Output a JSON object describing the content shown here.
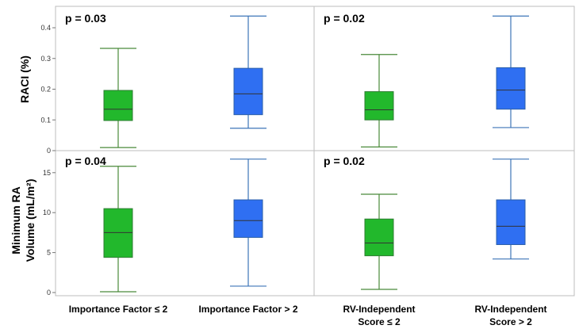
{
  "colors": {
    "green_fill": "#22b82c",
    "green_stroke": "#2e7d32",
    "blue_fill": "#2f6ff2",
    "blue_stroke": "#2b5fa8",
    "whisker_green": "#4a8a3a",
    "whisker_blue": "#3d74b8",
    "panel_border": "#bdbdbd"
  },
  "labels": {
    "x_cats": [
      [
        "Importance Factor ≤ 2"
      ],
      [
        "Importance Factor > 2"
      ],
      [
        "RV-Independent",
        "Score ≤ 2"
      ],
      [
        "RV-Independent",
        "Score > 2"
      ]
    ],
    "y_top": [
      "RACI (%)"
    ],
    "y_bottom": [
      "Minimum RA",
      "Volume (mL/m²)"
    ]
  },
  "chart_data": [
    {
      "type": "box",
      "panel": "top-left",
      "annotation": "p = 0.03",
      "ylabel": "RACI (%)",
      "ylim": [
        0,
        0.45
      ],
      "yticks": [
        0,
        0.1,
        0.2,
        0.3,
        0.4
      ],
      "ytick_labels": [
        "0",
        "0.1",
        "0.2",
        "0.3",
        "0.4"
      ],
      "categories": [
        "Importance Factor ≤ 2",
        "Importance Factor > 2"
      ],
      "boxes": [
        {
          "min": 0.01,
          "q1": 0.098,
          "median": 0.135,
          "q3": 0.196,
          "max": 0.333,
          "color": "green"
        },
        {
          "min": 0.073,
          "q1": 0.117,
          "median": 0.185,
          "q3": 0.268,
          "max": 0.438,
          "color": "blue"
        }
      ]
    },
    {
      "type": "box",
      "panel": "top-right",
      "annotation": "p = 0.02",
      "ylabel": "RACI (%)",
      "ylim": [
        0,
        0.45
      ],
      "categories": [
        "RV-Independent Score ≤ 2",
        "RV-Independent Score > 2"
      ],
      "boxes": [
        {
          "min": 0.012,
          "q1": 0.1,
          "median": 0.133,
          "q3": 0.192,
          "max": 0.313,
          "color": "green"
        },
        {
          "min": 0.075,
          "q1": 0.135,
          "median": 0.197,
          "q3": 0.27,
          "max": 0.438,
          "color": "blue"
        }
      ]
    },
    {
      "type": "box",
      "panel": "bottom-left",
      "annotation": "p = 0.04",
      "ylabel": "Minimum RA Volume (mL/m²)",
      "ylim": [
        0,
        17
      ],
      "yticks": [
        0,
        5,
        10,
        15
      ],
      "ytick_labels": [
        "0",
        "5",
        "10",
        "15"
      ],
      "categories": [
        "Importance Factor ≤ 2",
        "Importance Factor > 2"
      ],
      "boxes": [
        {
          "min": 0.1,
          "q1": 4.4,
          "median": 7.5,
          "q3": 10.5,
          "max": 15.8,
          "color": "green"
        },
        {
          "min": 0.8,
          "q1": 6.9,
          "median": 9.0,
          "q3": 11.6,
          "max": 16.7,
          "color": "blue"
        }
      ]
    },
    {
      "type": "box",
      "panel": "bottom-right",
      "annotation": "p = 0.02",
      "ylabel": "Minimum RA Volume (mL/m²)",
      "ylim": [
        0,
        17
      ],
      "categories": [
        "RV-Independent Score ≤ 2",
        "RV-Independent Score > 2"
      ],
      "boxes": [
        {
          "min": 0.4,
          "q1": 4.6,
          "median": 6.2,
          "q3": 9.2,
          "max": 12.3,
          "color": "green"
        },
        {
          "min": 4.2,
          "q1": 6.0,
          "median": 8.3,
          "q3": 11.6,
          "max": 16.7,
          "color": "blue"
        }
      ]
    }
  ]
}
